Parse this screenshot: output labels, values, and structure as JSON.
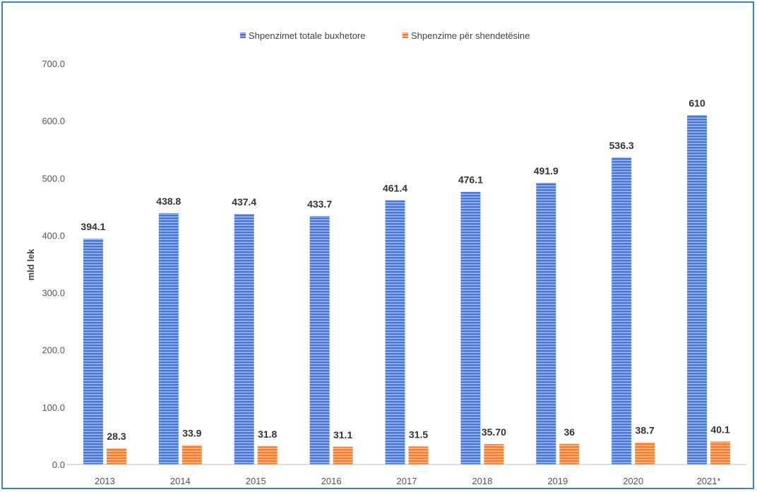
{
  "chart_data": {
    "type": "bar",
    "title": "",
    "xlabel": "",
    "ylabel": "mld lek",
    "ylim": [
      0,
      700
    ],
    "yticks": [
      "0.0",
      "100.0",
      "200.0",
      "300.0",
      "400.0",
      "500.0",
      "600.0",
      "700.0"
    ],
    "grid": false,
    "legend_position": "top-center",
    "categories": [
      "2013",
      "2014",
      "2015",
      "2016",
      "2017",
      "2018",
      "2019",
      "2020",
      "2021*"
    ],
    "series": [
      {
        "name": "Shpenzimet totale buxhetore",
        "color": "#4472c4",
        "values": [
          394.1,
          438.8,
          437.4,
          433.7,
          461.4,
          476.1,
          491.9,
          536.3,
          610
        ],
        "labels": [
          "394.1",
          "438.8",
          "437.4",
          "433.7",
          "461.4",
          "476.1",
          "491.9",
          "536.3",
          "610"
        ]
      },
      {
        "name": "Shpenzime për shendetësine",
        "color": "#ed7d31",
        "values": [
          28.3,
          33.9,
          31.8,
          31.1,
          31.5,
          35.7,
          36,
          38.7,
          40.1
        ],
        "labels": [
          "28.3",
          "33.9",
          "31.8",
          "31.1",
          "31.5",
          "35.70",
          "36",
          "38.7",
          "40.1"
        ]
      }
    ]
  }
}
